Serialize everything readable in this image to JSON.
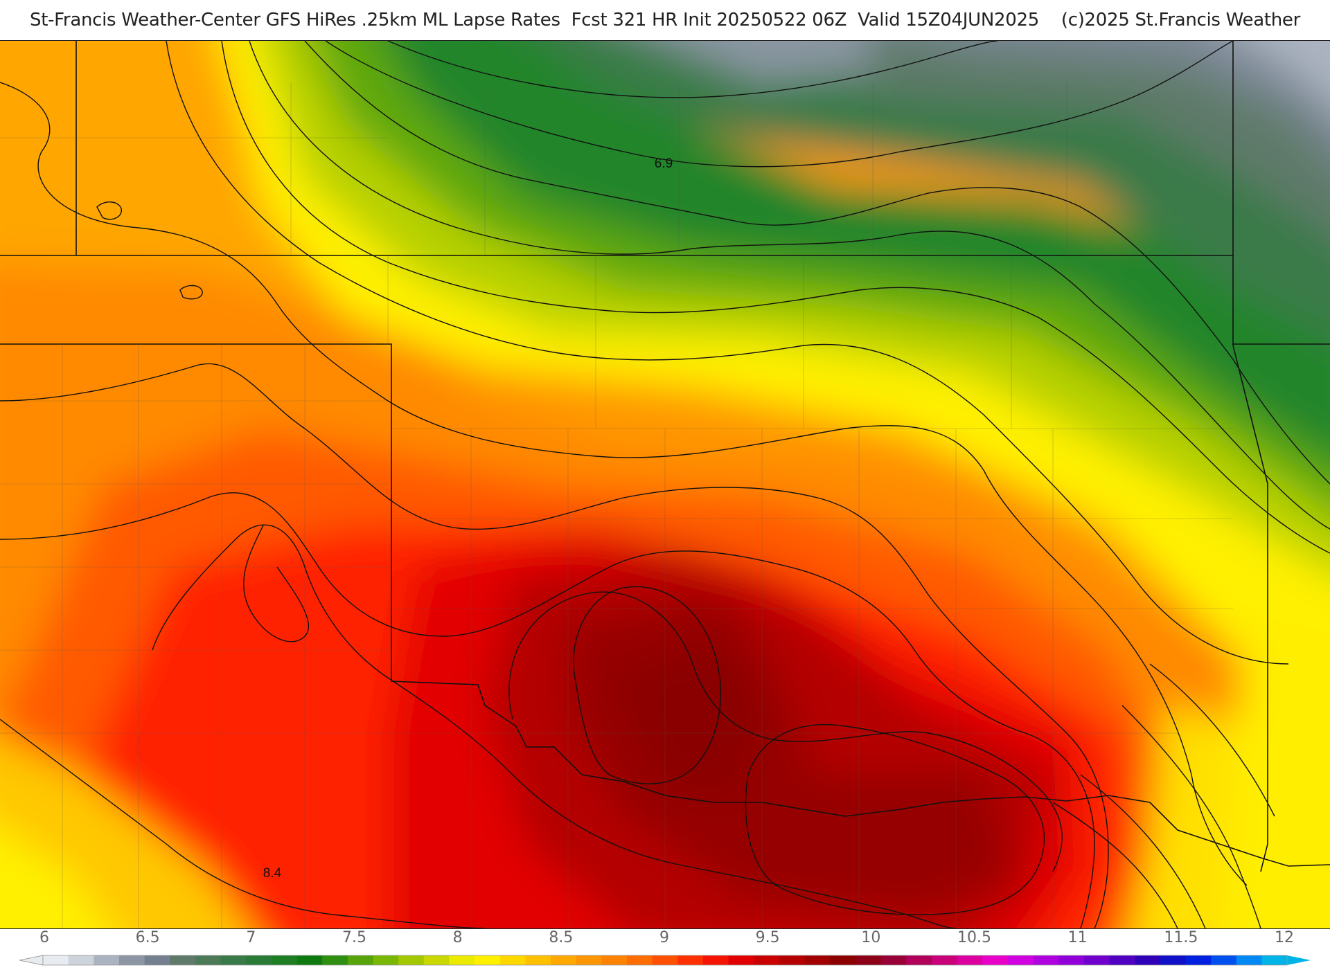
{
  "header": {
    "title": "St-Francis Weather-Center GFS HiRes .25km ML Lapse Rates  Fcst 321 HR Init 20250522 06Z  Valid 15Z04JUN2025    (c)2025 St.Francis Weather"
  },
  "map": {
    "contour_labels": [
      "6.9",
      "8.4"
    ]
  },
  "colorbar": {
    "tick_labels": [
      "6",
      "6.5",
      "7",
      "7.5",
      "8",
      "8.5",
      "9",
      "9.5",
      "10",
      "10.5",
      "11",
      "11.5",
      "12"
    ],
    "colors": [
      "#e8ecf0",
      "#cdd3db",
      "#aab3bf",
      "#8c96a4",
      "#748090",
      "#5f7a6a",
      "#4c7a58",
      "#3a7a48",
      "#2a7a38",
      "#1e7e24",
      "#0f7a10",
      "#2e8f10",
      "#56a40a",
      "#7ab604",
      "#a4c800",
      "#c8d800",
      "#eaeb00",
      "#fff000",
      "#ffd800",
      "#ffc000",
      "#ffa800",
      "#ff9600",
      "#ff8200",
      "#ff6c00",
      "#ff5000",
      "#ff3000",
      "#f41400",
      "#e00000",
      "#c80000",
      "#b40000",
      "#a00000",
      "#8c0000",
      "#8c0018",
      "#9a0038",
      "#b0005a",
      "#c8007a",
      "#dc00a0",
      "#e800c8",
      "#d000e0",
      "#b000e0",
      "#9000d8",
      "#7000cc",
      "#5000c0",
      "#3000b8",
      "#1010c8",
      "#0020e0",
      "#0050f0",
      "#0088f4",
      "#00b4e8"
    ]
  }
}
